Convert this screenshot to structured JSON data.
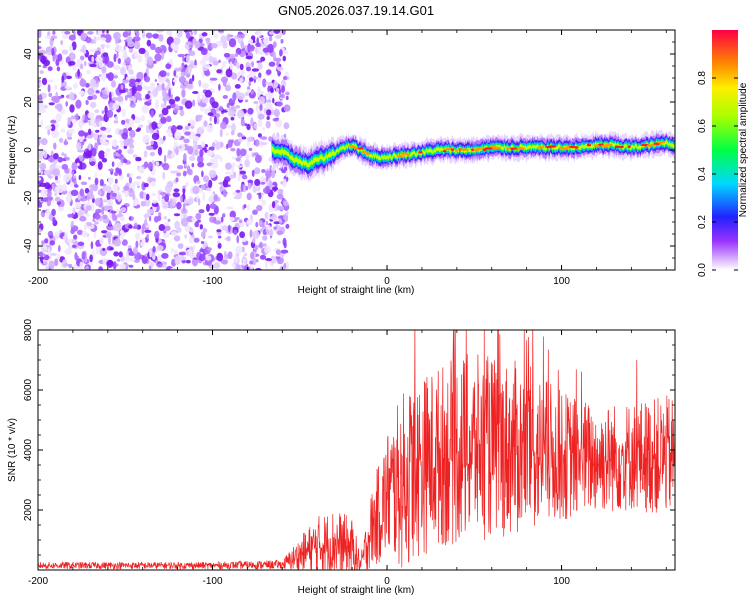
{
  "figure": {
    "title": "GN05.2026.037.19.14.G01"
  },
  "colors": {
    "axis": "#000000",
    "snr_line": "#ee2222",
    "bg": "#ffffff"
  },
  "chart_data": [
    {
      "type": "heatmap",
      "title": "GN05.2026.037.19.14.G01",
      "xlabel": "Height of straight line (km)",
      "ylabel": "Frequency (Hz)",
      "xlim": [
        -200,
        165
      ],
      "ylim": [
        -50,
        50
      ],
      "xticks": [
        -200,
        -100,
        0,
        100
      ],
      "xtick_labels": [
        "-200",
        "-100",
        "0",
        "100"
      ],
      "yticks": [
        -40,
        -20,
        0,
        20,
        40
      ],
      "ytick_labels": [
        "-40",
        "-20",
        "0",
        "20",
        "40"
      ],
      "noise_region_x": [
        -200,
        -57
      ],
      "signal_start_x": -66,
      "colorbar": {
        "label": "Normalized spectral amplitude",
        "range": [
          0.0,
          1.0
        ],
        "ticks": [
          0.0,
          0.2,
          0.4,
          0.6,
          0.8
        ],
        "tick_labels": [
          "0.0",
          "0.2",
          "0.4",
          "0.6",
          "0.8"
        ]
      },
      "signal_centerline": {
        "x": [
          -66,
          -60,
          -55,
          -50,
          -45,
          -40,
          -35,
          -30,
          -25,
          -20,
          -15,
          -10,
          -5,
          0,
          10,
          20,
          30,
          40,
          50,
          60,
          70,
          80,
          90,
          100,
          110,
          120,
          130,
          140,
          150,
          160,
          165
        ],
        "y": [
          0,
          -1,
          -3,
          -5,
          -6,
          -4,
          -3,
          -1,
          1,
          2,
          0,
          -2,
          -3,
          -3,
          -2,
          -1,
          0,
          0,
          0,
          1,
          1,
          1,
          1,
          1,
          1,
          2,
          2,
          1,
          2,
          3,
          2
        ]
      }
    },
    {
      "type": "line",
      "xlabel": "Height of straight line (km)",
      "ylabel": "SNR (10 * v/v)",
      "xlim": [
        -200,
        165
      ],
      "ylim": [
        0,
        8000
      ],
      "xticks": [
        -200,
        -100,
        0,
        100
      ],
      "xtick_labels": [
        "-200",
        "-100",
        "0",
        "100"
      ],
      "yticks": [
        2000,
        4000,
        6000,
        8000
      ],
      "ytick_labels": [
        "2000",
        "4000",
        "6000",
        "8000"
      ],
      "series": [
        {
          "name": "SNR",
          "envelope": {
            "x": [
              -200,
              -100,
              -60,
              -50,
              -40,
              -30,
              -20,
              -15,
              -10,
              0,
              10,
              20,
              30,
              40,
              60,
              80,
              100,
              120,
              140,
              165
            ],
            "mid": [
              150,
              150,
              180,
              500,
              800,
              900,
              700,
              150,
              1200,
              2500,
              3000,
              3500,
              3800,
              4000,
              4100,
              4000,
              3800,
              3700,
              3800,
              3800
            ],
            "amp": [
              70,
              70,
              90,
              350,
              600,
              700,
              600,
              200,
              700,
              1300,
              1800,
              1800,
              1800,
              1900,
              1800,
              1700,
              1300,
              1100,
              1100,
              1200
            ]
          }
        }
      ]
    }
  ]
}
